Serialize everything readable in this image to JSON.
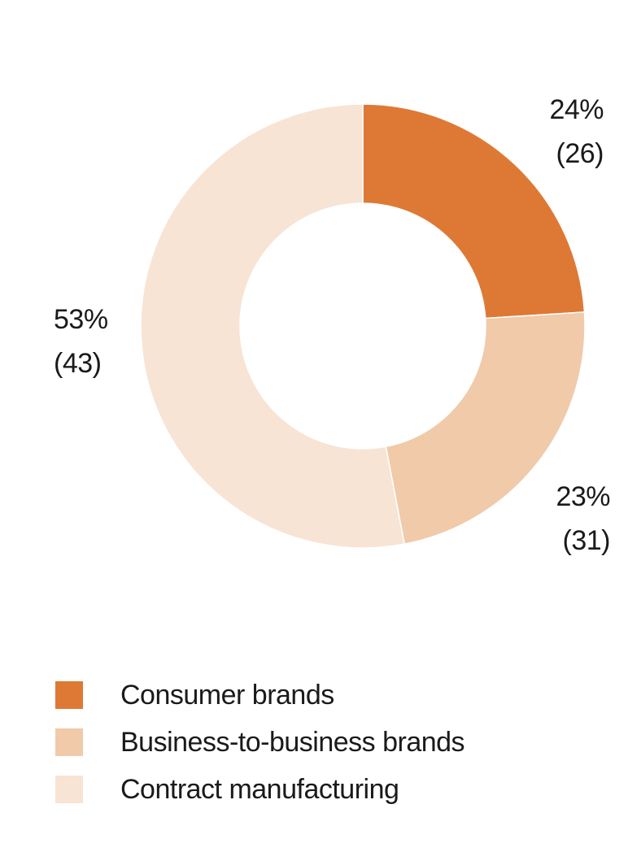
{
  "chart_data": {
    "type": "pie",
    "donut": true,
    "slices": [
      {
        "name": "Consumer brands",
        "value": 24,
        "value_label": "24%",
        "prior_label": "(26)",
        "color": "#de7935"
      },
      {
        "name": "Business-to-business brands",
        "value": 23,
        "value_label": "23%",
        "prior_label": "(31)",
        "color": "#f0caa9"
      },
      {
        "name": "Contract manufacturing",
        "value": 53,
        "value_label": "53%",
        "prior_label": "(43)",
        "color": "#f7e4d5"
      }
    ],
    "legend_position": "bottom-left"
  }
}
